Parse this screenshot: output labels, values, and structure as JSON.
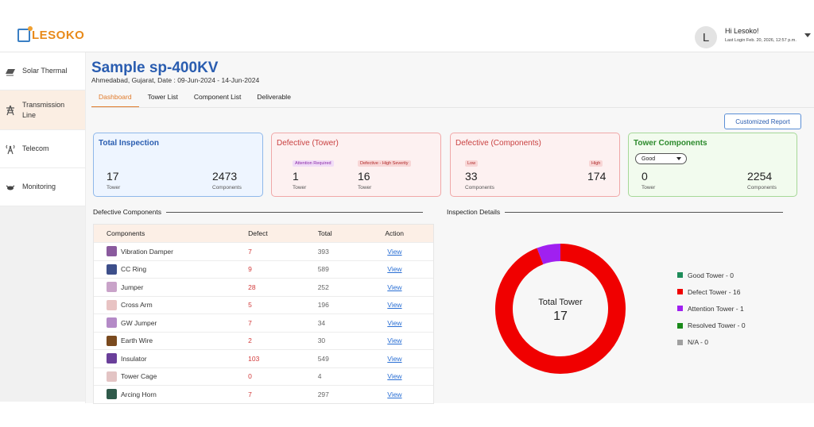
{
  "header": {
    "logo_text": "LESOKO",
    "greeting": "Hi Lesoko!",
    "last_login": "Last Login Feb. 20, 2026, 12:57 p.m.",
    "avatar_initial": "L"
  },
  "sidebar": {
    "items": [
      {
        "label": "Solar Thermal",
        "icon": "solar-panel-icon"
      },
      {
        "label": "Transmission Line",
        "icon": "transmission-tower-icon",
        "active": true
      },
      {
        "label": "Telecom",
        "icon": "telecom-tower-icon"
      },
      {
        "label": "Monitoring",
        "icon": "drone-icon"
      }
    ]
  },
  "page": {
    "title": "Sample sp-400KV",
    "subtitle": "Ahmedabad, Gujarat, Date : 09-Jun-2024 - 14-Jun-2024",
    "tabs": [
      "Dashboard",
      "Tower List",
      "Component List",
      "Deliverable"
    ],
    "active_tab": 0,
    "report_button": "Customized Report"
  },
  "cards": {
    "total_inspection": {
      "title": "Total Inspection",
      "tower": "17",
      "tower_label": "Tower",
      "components": "2473",
      "components_label": "Components"
    },
    "defective_tower": {
      "title": "Defective (Tower)",
      "chip1": "Attention Required",
      "chip2": "Defective - High Severity",
      "v1": "1",
      "v1_label": "Tower",
      "v2": "16",
      "v2_label": "Tower"
    },
    "defective_components": {
      "title": "Defective (Components)",
      "chip1": "Low",
      "chip2": "High",
      "v1": "33",
      "v1_label": "Components",
      "v2": "174"
    },
    "tower_components": {
      "title": "Tower Components",
      "select_value": "Good",
      "v1": "0",
      "v1_label": "Tower",
      "v2": "2254",
      "v2_label": "Components"
    }
  },
  "sections": {
    "defective_components": "Defective Components",
    "inspection_details": "Inspection Details"
  },
  "table": {
    "headers": [
      "Components",
      "Defect",
      "Total",
      "Action"
    ],
    "rows": [
      {
        "name": "Vibration Damper",
        "defect": "7",
        "total": "393",
        "action": "View",
        "icon_color": "#8a5a9e"
      },
      {
        "name": "CC Ring",
        "defect": "9",
        "total": "589",
        "action": "View",
        "icon_color": "#3d4f8a"
      },
      {
        "name": "Jumper",
        "defect": "28",
        "total": "252",
        "action": "View",
        "icon_color": "#c9a3c9"
      },
      {
        "name": "Cross Arm",
        "defect": "5",
        "total": "196",
        "action": "View",
        "icon_color": "#e8c3c3"
      },
      {
        "name": "GW Jumper",
        "defect": "7",
        "total": "34",
        "action": "View",
        "icon_color": "#b48ac7"
      },
      {
        "name": "Earth Wire",
        "defect": "2",
        "total": "30",
        "action": "View",
        "icon_color": "#7a4a1e"
      },
      {
        "name": "Insulator",
        "defect": "103",
        "total": "549",
        "action": "View",
        "icon_color": "#6a3f9a"
      },
      {
        "name": "Tower Cage",
        "defect": "0",
        "total": "4",
        "action": "View",
        "icon_color": "#e3c4c4"
      },
      {
        "name": "Arcing Horn",
        "defect": "7",
        "total": "297",
        "action": "View",
        "icon_color": "#2f5a4a"
      }
    ]
  },
  "donut": {
    "center_label": "Total Tower",
    "center_value": "17",
    "segments": [
      {
        "label": "Good Tower - 0",
        "value": 0,
        "color": "#1e8c5a"
      },
      {
        "label": "Defect Tower - 16",
        "value": 16,
        "color": "#f00000"
      },
      {
        "label": "Attention Tower - 1",
        "value": 1,
        "color": "#a020f0"
      },
      {
        "label": "Resolved Tower - 0",
        "value": 0,
        "color": "#1a8a1a"
      },
      {
        "label": "N/A - 0",
        "value": 0,
        "color": "#a0a0a0"
      }
    ]
  }
}
